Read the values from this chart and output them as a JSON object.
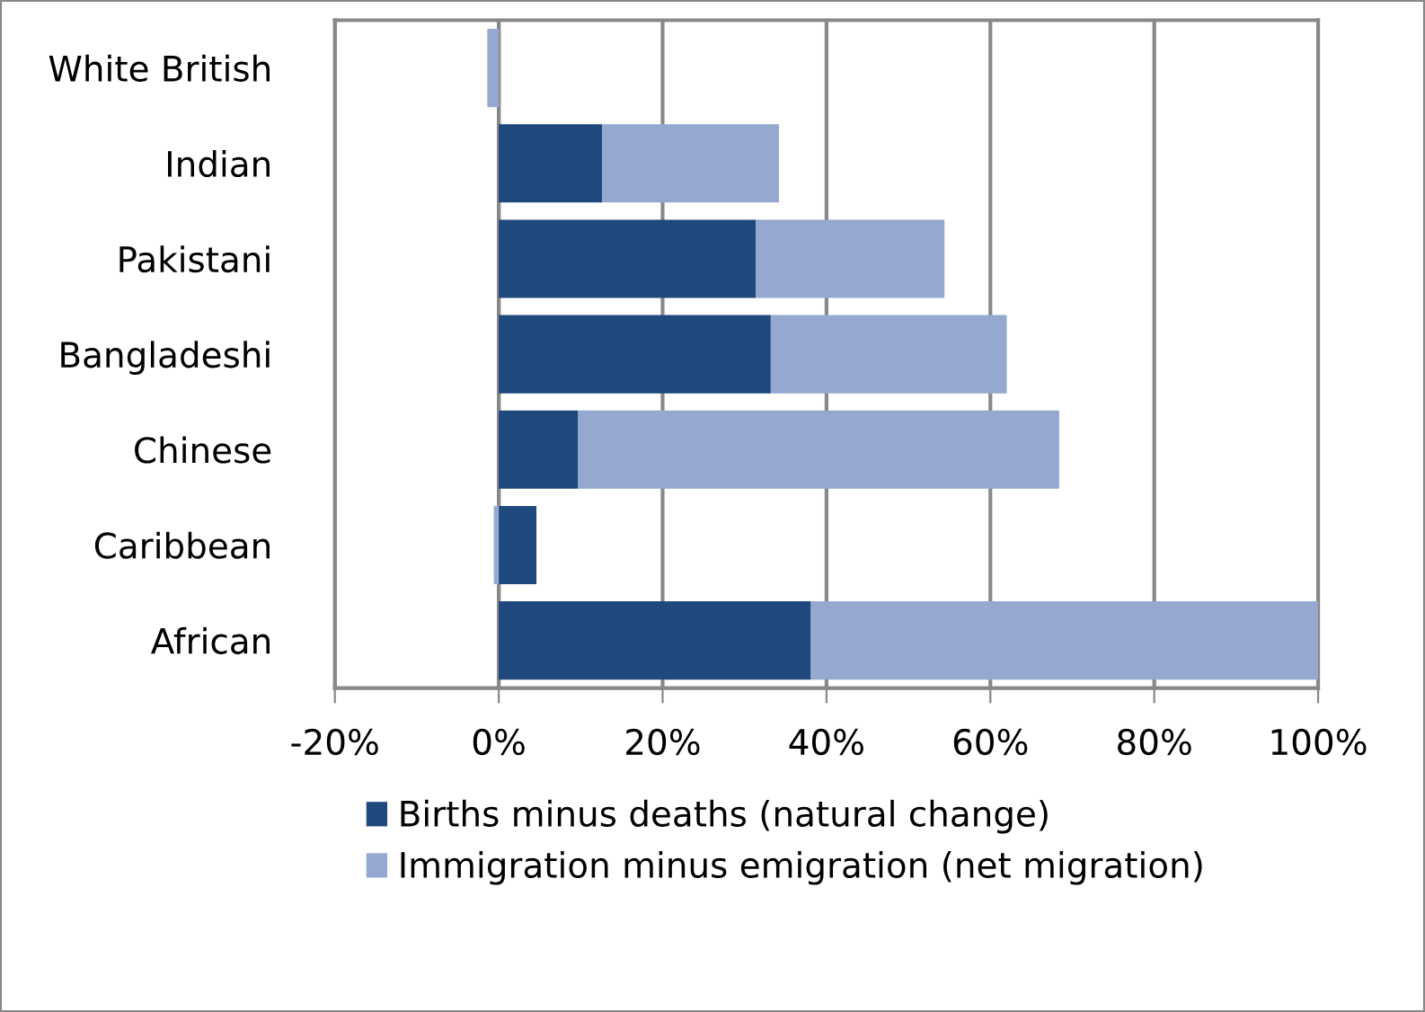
{
  "chart_data": {
    "type": "bar",
    "orientation": "horizontal",
    "stacked": true,
    "categories": [
      "White British",
      "Indian",
      "Pakistani",
      "Bangladeshi",
      "Chinese",
      "Caribbean",
      "African"
    ],
    "series": [
      {
        "name": "Births minus deaths (natural change)",
        "color": "#1f497d",
        "values": [
          null,
          12.6,
          31.4,
          33.2,
          9.7,
          4.6,
          38.1
        ]
      },
      {
        "name": "Immigration minus emigration (net migration)",
        "color": "#95a9d0",
        "values": [
          -1.4,
          21.6,
          23,
          28.8,
          58.7,
          -0.6,
          61.9
        ]
      }
    ],
    "xlim": [
      -20,
      100
    ],
    "xticks": [
      {
        "value": -20,
        "label": "-20%"
      },
      {
        "value": 0,
        "label": "0%"
      },
      {
        "value": 20,
        "label": "20%"
      },
      {
        "value": 40,
        "label": "40%"
      },
      {
        "value": 60,
        "label": "60%"
      },
      {
        "value": 80,
        "label": "80%"
      },
      {
        "value": 100,
        "label": "100%"
      }
    ],
    "grid": "x",
    "legend": "bottom"
  }
}
